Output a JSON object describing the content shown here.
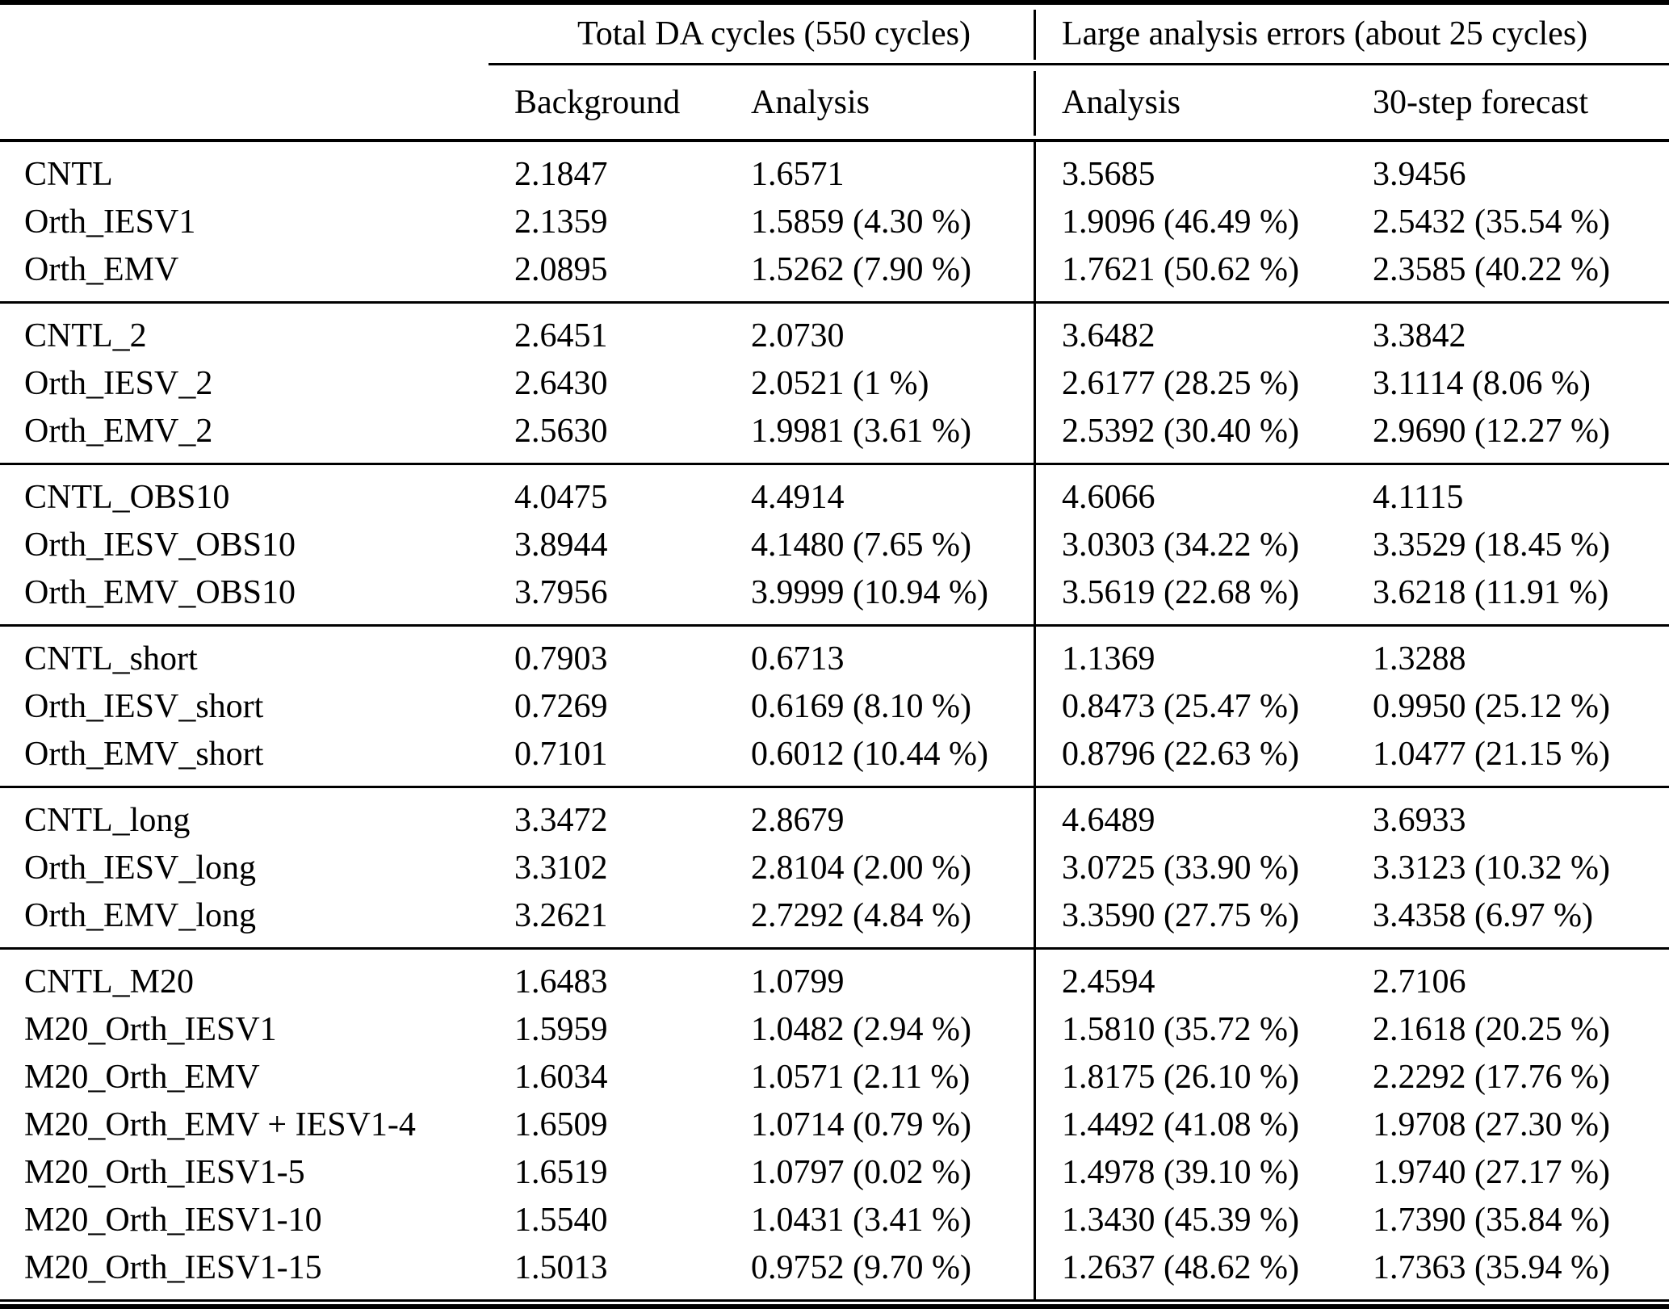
{
  "table": {
    "group_headers": [
      {
        "label": "Total DA cycles (550 cycles)"
      },
      {
        "label": "Large analysis errors (about 25 cycles)"
      }
    ],
    "column_headers": [
      "Background",
      "Analysis",
      "Analysis",
      "30-step forecast"
    ],
    "groups": [
      {
        "rows": [
          {
            "cells": [
              "CNTL",
              "2.1847",
              "1.6571",
              "3.5685",
              "3.9456"
            ]
          },
          {
            "cells": [
              "Orth_IESV1",
              "2.1359",
              "1.5859 (4.30 %)",
              "1.9096 (46.49 %)",
              "2.5432 (35.54 %)"
            ]
          },
          {
            "cells": [
              "Orth_EMV",
              "2.0895",
              "1.5262 (7.90 %)",
              "1.7621 (50.62 %)",
              "2.3585 (40.22 %)"
            ]
          }
        ]
      },
      {
        "rows": [
          {
            "cells": [
              "CNTL_2",
              "2.6451",
              "2.0730",
              "3.6482",
              "3.3842"
            ]
          },
          {
            "cells": [
              "Orth_IESV_2",
              "2.6430",
              "2.0521 (1 %)",
              "2.6177 (28.25 %)",
              "3.1114 (8.06 %)"
            ]
          },
          {
            "cells": [
              "Orth_EMV_2",
              "2.5630",
              "1.9981 (3.61 %)",
              "2.5392 (30.40 %)",
              "2.9690 (12.27 %)"
            ]
          }
        ]
      },
      {
        "rows": [
          {
            "cells": [
              "CNTL_OBS10",
              "4.0475",
              "4.4914",
              "4.6066",
              "4.1115"
            ]
          },
          {
            "cells": [
              "Orth_IESV_OBS10",
              "3.8944",
              "4.1480 (7.65 %)",
              "3.0303 (34.22 %)",
              "3.3529 (18.45 %)"
            ]
          },
          {
            "cells": [
              "Orth_EMV_OBS10",
              "3.7956",
              "3.9999 (10.94 %)",
              "3.5619 (22.68 %)",
              "3.6218 (11.91 %)"
            ]
          }
        ]
      },
      {
        "rows": [
          {
            "cells": [
              "CNTL_short",
              "0.7903",
              "0.6713",
              "1.1369",
              "1.3288"
            ]
          },
          {
            "cells": [
              "Orth_IESV_short",
              "0.7269",
              "0.6169 (8.10 %)",
              "0.8473 (25.47 %)",
              "0.9950 (25.12 %)"
            ]
          },
          {
            "cells": [
              "Orth_EMV_short",
              "0.7101",
              "0.6012 (10.44 %)",
              "0.8796 (22.63 %)",
              "1.0477 (21.15 %)"
            ]
          }
        ]
      },
      {
        "rows": [
          {
            "cells": [
              "CNTL_long",
              "3.3472",
              "2.8679",
              "4.6489",
              "3.6933"
            ]
          },
          {
            "cells": [
              "Orth_IESV_long",
              "3.3102",
              "2.8104 (2.00 %)",
              "3.0725 (33.90 %)",
              "3.3123 (10.32 %)"
            ]
          },
          {
            "cells": [
              "Orth_EMV_long",
              "3.2621",
              "2.7292 (4.84 %)",
              "3.3590 (27.75 %)",
              "3.4358 (6.97 %)"
            ]
          }
        ]
      },
      {
        "rows": [
          {
            "cells": [
              "CNTL_M20",
              "1.6483",
              "1.0799",
              "2.4594",
              "2.7106"
            ]
          },
          {
            "cells": [
              "M20_Orth_IESV1",
              "1.5959",
              "1.0482 (2.94 %)",
              "1.5810 (35.72 %)",
              "2.1618 (20.25 %)"
            ]
          },
          {
            "cells": [
              "M20_Orth_EMV",
              "1.6034",
              "1.0571 (2.11 %)",
              "1.8175 (26.10 %)",
              "2.2292 (17.76 %)"
            ]
          },
          {
            "cells": [
              "M20_Orth_EMV + IESV1-4",
              "1.6509",
              "1.0714 (0.79 %)",
              "1.4492 (41.08 %)",
              "1.9708 (27.30 %)"
            ]
          },
          {
            "cells": [
              "M20_Orth_IESV1-5",
              "1.6519",
              "1.0797 (0.02 %)",
              "1.4978 (39.10 %)",
              "1.9740 (27.17 %)"
            ]
          },
          {
            "cells": [
              "M20_Orth_IESV1-10",
              "1.5540",
              "1.0431 (3.41 %)",
              "1.3430 (45.39 %)",
              "1.7390 (35.84 %)"
            ]
          },
          {
            "cells": [
              "M20_Orth_IESV1-15",
              "1.5013",
              "0.9752 (9.70 %)",
              "1.2637 (48.62 %)",
              "1.7363 (35.94 %)"
            ]
          }
        ]
      }
    ]
  }
}
